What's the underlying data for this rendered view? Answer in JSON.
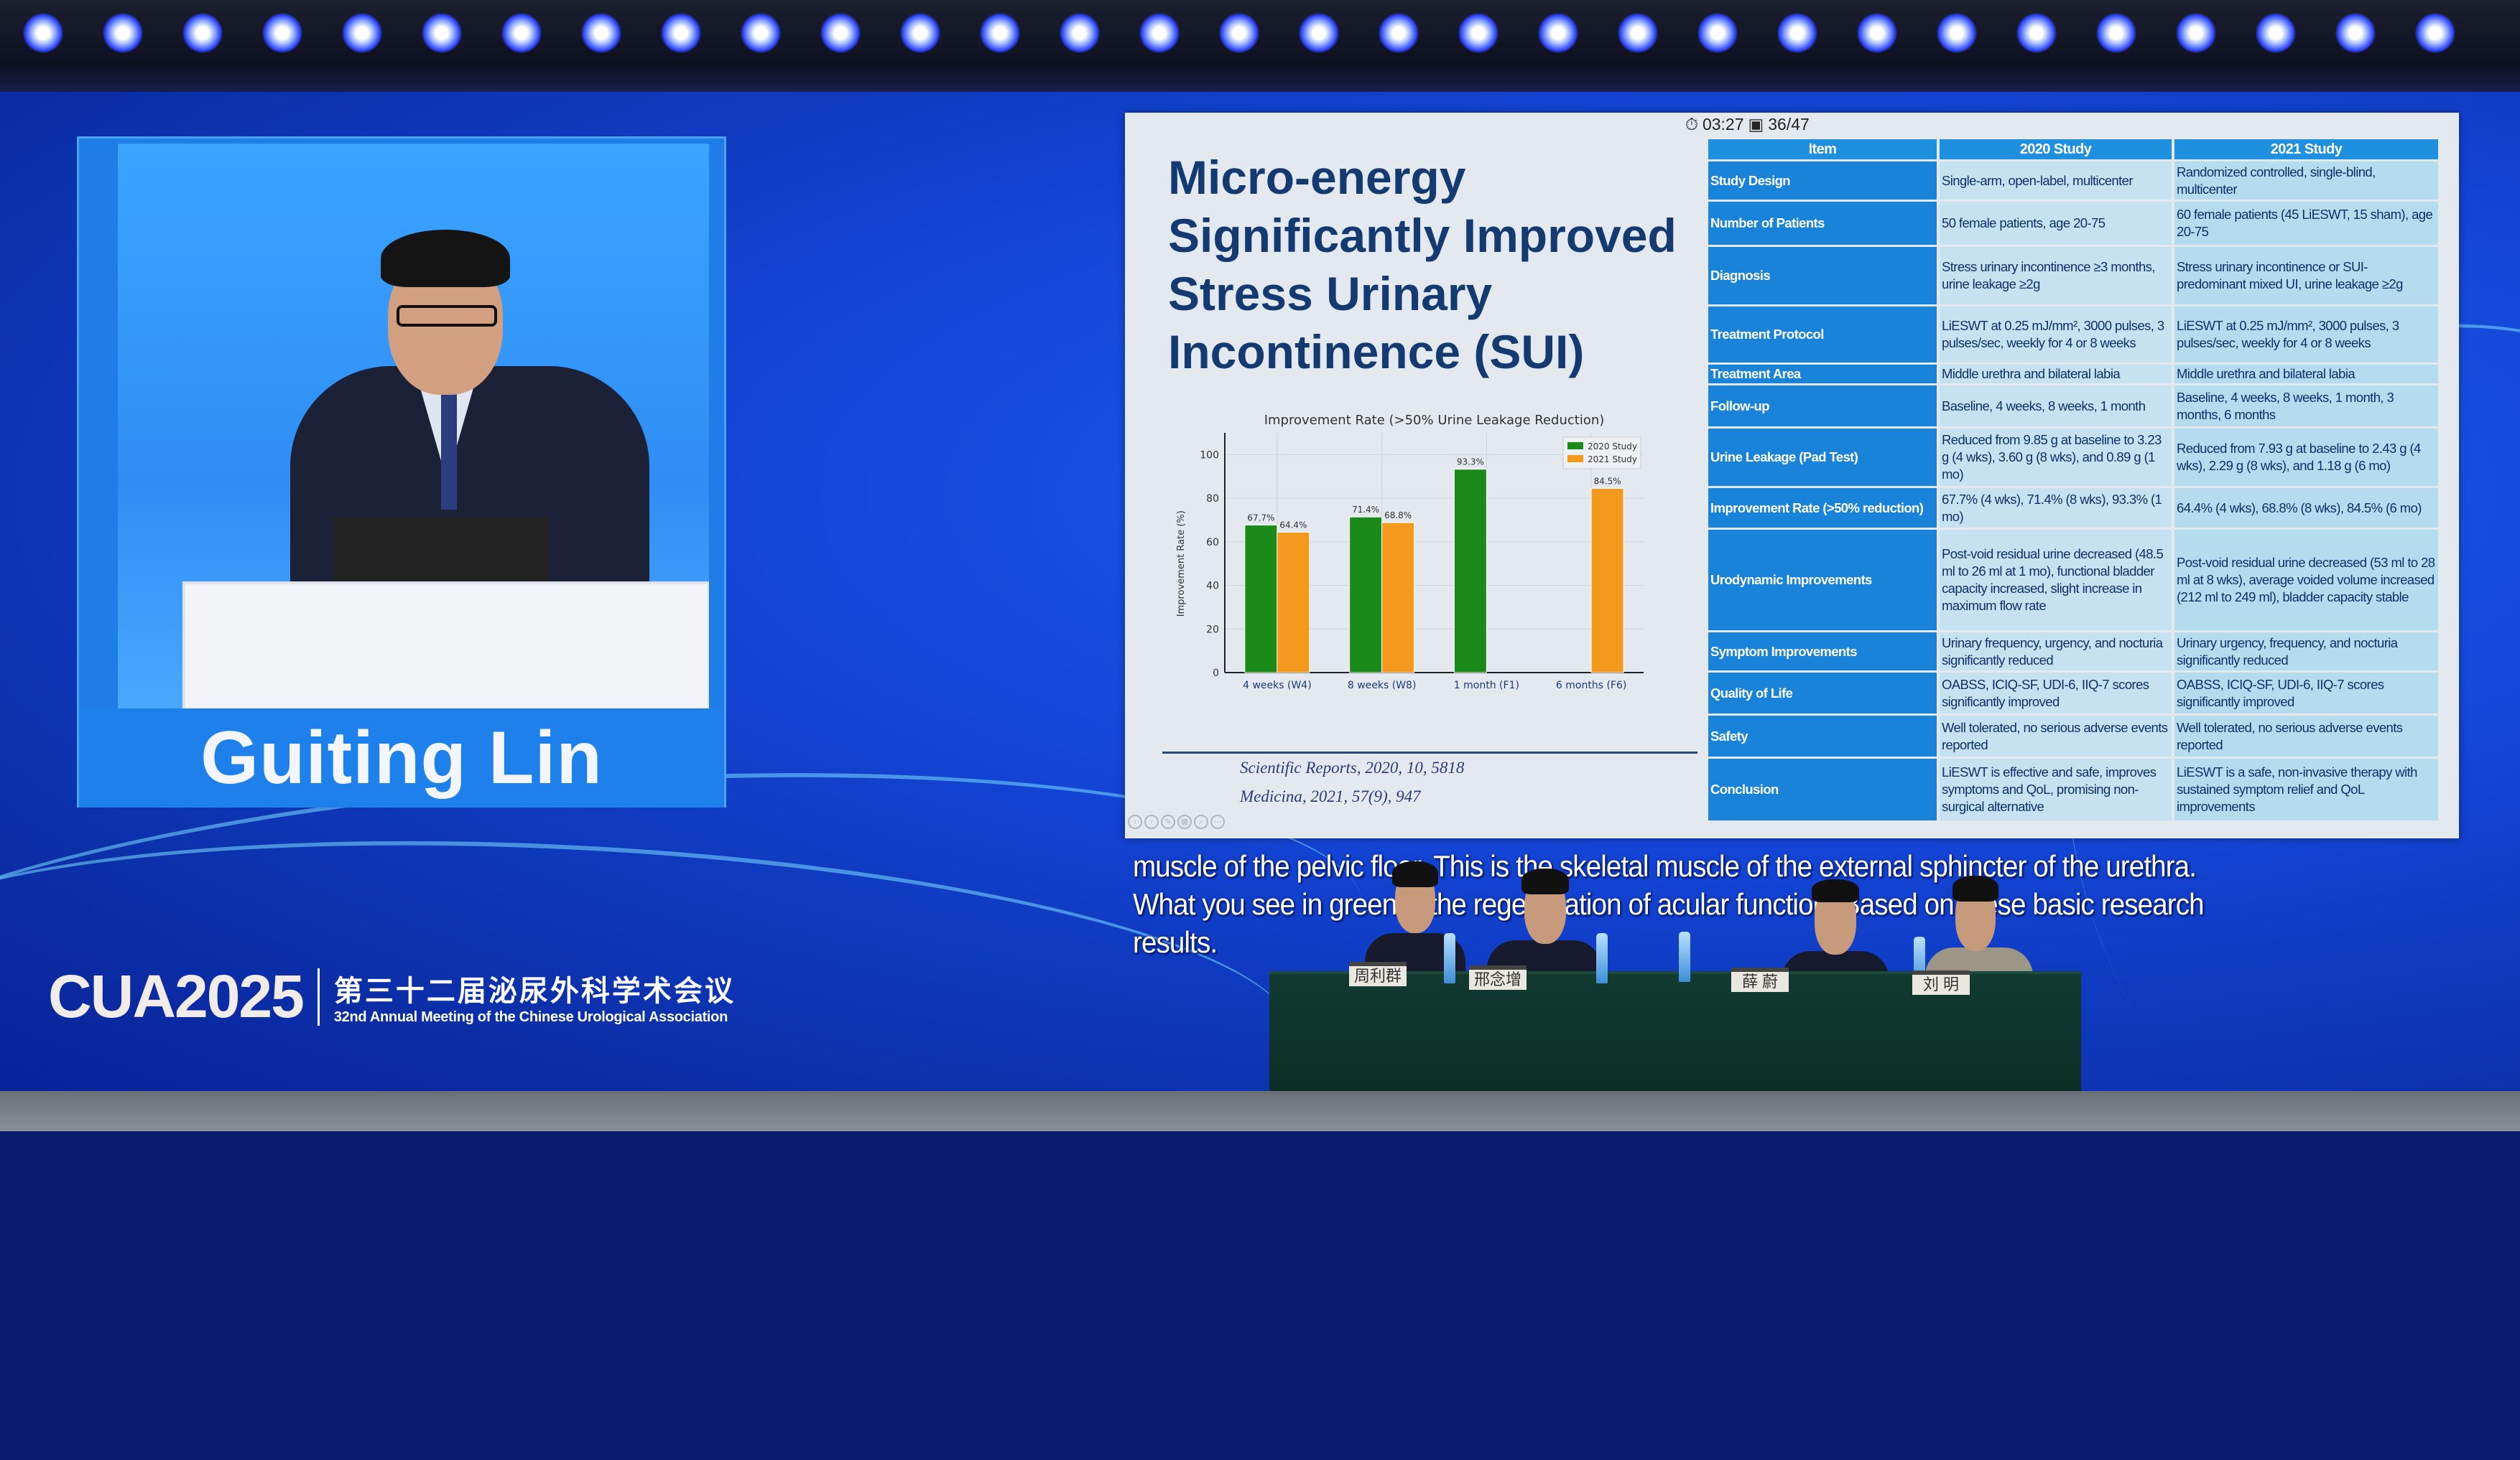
{
  "speaker": {
    "name": "Guiting Lin"
  },
  "slide": {
    "title": "Micro-energy Significantly Improved Stress Urinary Incontinence (SUI)",
    "timer": "03:27",
    "slide_counter": "36/47",
    "citations": [
      "Scientific Reports, 2020,    10, 5818",
      "Medicina, 2021,  57(9), 947"
    ],
    "table": {
      "headers": [
        "Item",
        "2020 Study",
        "2021 Study"
      ],
      "rows": [
        [
          "Study Design",
          "Single-arm, open-label, multicenter",
          "Randomized controlled, single-blind, multicenter"
        ],
        [
          "Number of Patients",
          "50 female patients, age 20-75",
          "60 female patients (45 LiESWT, 15 sham), age 20-75"
        ],
        [
          "Diagnosis",
          "Stress urinary incontinence ≥3 months, urine leakage ≥2g",
          "Stress urinary incontinence or SUI-predominant mixed UI, urine leakage ≥2g"
        ],
        [
          "Treatment Protocol",
          "LiESWT at 0.25 mJ/mm², 3000 pulses, 3 pulses/sec, weekly for 4 or 8 weeks",
          "LiESWT at 0.25 mJ/mm², 3000 pulses, 3 pulses/sec, weekly for 4 or 8 weeks"
        ],
        [
          "Treatment Area",
          "Middle urethra and bilateral labia",
          "Middle urethra and bilateral labia"
        ],
        [
          "Follow-up",
          "Baseline, 4 weeks, 8 weeks, 1 month",
          "Baseline, 4 weeks, 8 weeks, 1 month, 3 months, 6 months"
        ],
        [
          "Urine Leakage (Pad Test)",
          "Reduced from 9.85 g at baseline to 3.23 g (4 wks), 3.60 g (8 wks), and 0.89 g (1 mo)",
          "Reduced from 7.93 g at baseline to 2.43 g (4 wks), 2.29 g (8 wks), and 1.18 g (6 mo)"
        ],
        [
          "Improvement Rate (>50% reduction)",
          "67.7% (4 wks), 71.4% (8 wks), 93.3% (1 mo)",
          "64.4% (4 wks), 68.8% (8 wks), 84.5% (6 mo)"
        ],
        [
          "Urodynamic Improvements",
          "Post-void residual urine decreased (48.5 ml to 26 ml at 1 mo), functional bladder capacity increased, slight increase in maximum flow rate",
          "Post-void residual urine decreased (53 ml to 28 ml at 8 wks), average voided volume increased (212 ml to 249 ml), bladder capacity stable"
        ],
        [
          "Symptom Improvements",
          "Urinary frequency, urgency, and nocturia significantly reduced",
          "Urinary urgency, frequency, and nocturia significantly reduced"
        ],
        [
          "Quality of Life",
          "OABSS, ICIQ-SF, UDI-6, IIQ-7 scores significantly improved",
          "OABSS, ICIQ-SF, UDI-6, IIQ-7 scores significantly improved"
        ],
        [
          "Safety",
          "Well tolerated, no serious adverse events reported",
          "Well tolerated, no serious adverse events reported"
        ],
        [
          "Conclusion",
          "LiESWT is effective and safe, improves symptoms and QoL, promising non-surgical alternative",
          "LiESWT is a safe, non-invasive therapy with sustained symptom relief and QoL improvements"
        ]
      ]
    }
  },
  "chart_data": {
    "type": "bar",
    "title": "Improvement Rate (>50% Urine Leakage Reduction)",
    "xlabel": "",
    "ylabel": "Improvement Rate (%)",
    "categories": [
      "4 weeks (W4)",
      "8 weeks (W8)",
      "1 month (F1)",
      "6 months (F6)"
    ],
    "series": [
      {
        "name": "2020 Study",
        "color": "#1a8a1a",
        "values": [
          67.7,
          71.4,
          93.3,
          null
        ]
      },
      {
        "name": "2021 Study",
        "color": "#f39a1e",
        "values": [
          64.4,
          68.8,
          null,
          84.5
        ]
      }
    ],
    "data_labels": [
      [
        "67.7%",
        "71.4%",
        "93.3%",
        null
      ],
      [
        "64.4%",
        "68.8%",
        null,
        "84.5%"
      ]
    ],
    "yticks": [
      0,
      20,
      40,
      60,
      80,
      100
    ],
    "ylim": [
      0,
      110
    ],
    "grid": true,
    "legend": "top-right"
  },
  "subtitles": [
    "muscle of the pelvic floor. This is the skeletal muscle of the external sphincter of the urethra.",
    "What you see in green is the regeneration of acular function. Based on these basic research",
    "results."
  ],
  "panel": {
    "name_cards": [
      "周利群",
      "邢念增",
      "薛 蔚",
      "刘 明"
    ]
  },
  "logo": {
    "brand": "CUA2025",
    "chinese": "第三十二届泌尿外科学术会议",
    "english": "32nd Annual Meeting of the Chinese Urological Association"
  }
}
